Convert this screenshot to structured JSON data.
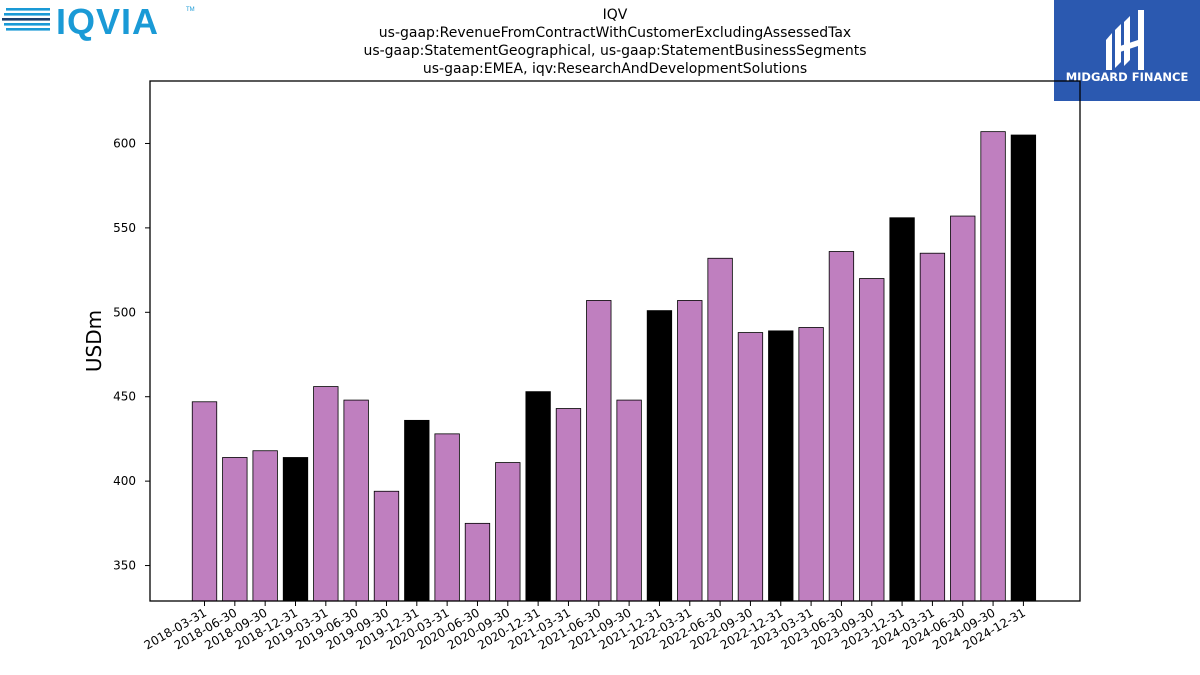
{
  "logos": {
    "left_text": "IQVIA",
    "left_tm": "TM",
    "right_text": "MIDGARD FINANCE",
    "brand_blue": "#1a9ad6",
    "brand_navy": "#1c3f6e",
    "midgard_bg": "#2b59b0"
  },
  "chart_data": {
    "type": "bar",
    "title_lines": [
      "IQV",
      "us-gaap:RevenueFromContractWithCustomerExcludingAssessedTax",
      "us-gaap:StatementGeographical, us-gaap:StatementBusinessSegments",
      "us-gaap:EMEA, iqv:ResearchAndDevelopmentSolutions"
    ],
    "xlabel": "",
    "ylabel": "USDm",
    "ylim": [
      329,
      637
    ],
    "yticks": [
      350,
      400,
      450,
      500,
      550,
      600
    ],
    "categories": [
      "2018-03-31",
      "2018-06-30",
      "2018-09-30",
      "2018-12-31",
      "2019-03-31",
      "2019-06-30",
      "2019-09-30",
      "2019-12-31",
      "2020-03-31",
      "2020-06-30",
      "2020-09-30",
      "2020-12-31",
      "2021-03-31",
      "2021-06-30",
      "2021-09-30",
      "2021-12-31",
      "2022-03-31",
      "2022-06-30",
      "2022-09-30",
      "2022-12-31",
      "2023-03-31",
      "2023-06-30",
      "2023-09-30",
      "2023-12-31",
      "2024-03-31",
      "2024-06-30",
      "2024-09-30",
      "2024-12-31"
    ],
    "values": [
      447,
      414,
      418,
      414,
      456,
      448,
      394,
      436,
      428,
      375,
      411,
      453,
      443,
      507,
      448,
      501,
      507,
      532,
      488,
      489,
      491,
      536,
      520,
      556,
      535,
      557,
      607,
      605
    ],
    "quarter_color": "#bf7fbf",
    "year_end_color": "#000000",
    "grid": false,
    "legend": "none"
  }
}
